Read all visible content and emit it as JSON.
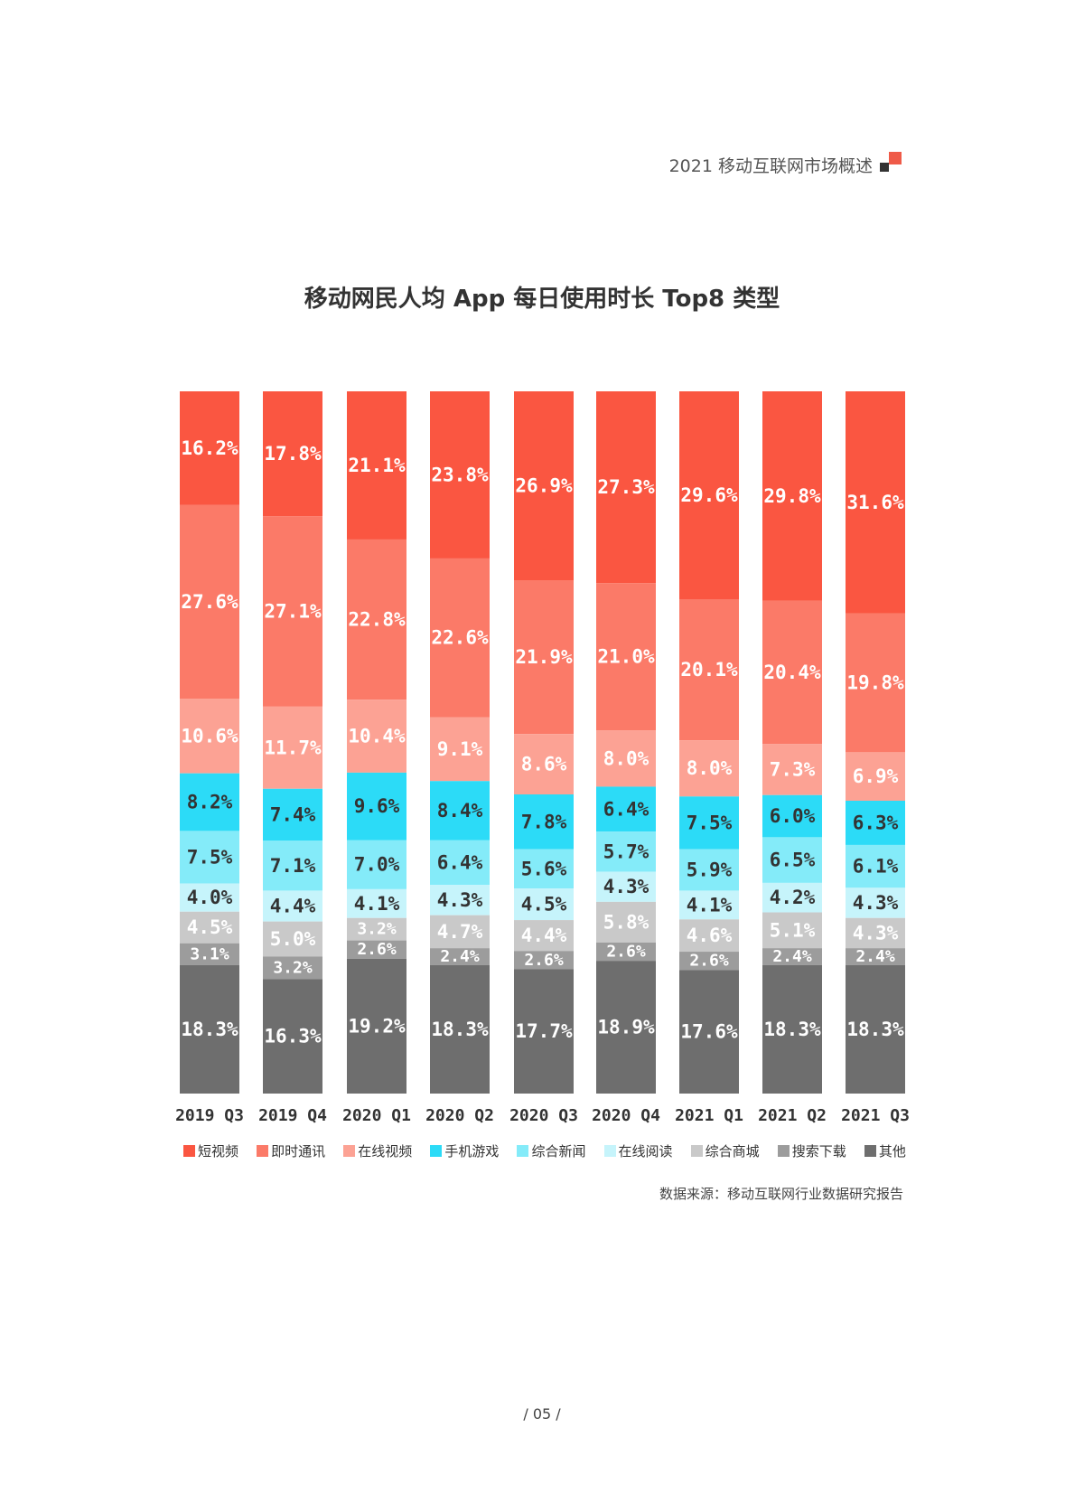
{
  "header": {
    "text": "2021 移动互联网市场概述"
  },
  "page_number": "/ 05 /",
  "source": "数据来源：移动互联网行业数据研究报告",
  "chart_data": {
    "type": "bar",
    "stacked": true,
    "title": "移动网民人均 App 每日使用时长 Top8 类型",
    "categories": [
      "2019 Q3",
      "2019 Q4",
      "2020 Q1",
      "2020 Q2",
      "2020 Q3",
      "2020 Q4",
      "2021 Q1",
      "2021 Q2",
      "2021 Q3"
    ],
    "legend_position": "bottom",
    "grid": false,
    "series": [
      {
        "name": "短视频",
        "color": "#fa5641",
        "label_color": "#ffffff",
        "values": [
          16.2,
          17.8,
          21.1,
          23.8,
          26.9,
          27.3,
          29.6,
          29.8,
          31.6
        ],
        "labels": [
          "16.2%",
          "17.8%",
          "21.1%",
          "23.8%",
          "26.9%",
          "27.3%",
          "29.6%",
          "29.8%",
          "31.6%"
        ]
      },
      {
        "name": "即时通讯",
        "color": "#fb7a68",
        "label_color": "#ffffff",
        "values": [
          27.6,
          27.1,
          22.8,
          22.6,
          21.9,
          21.0,
          20.1,
          20.4,
          19.8
        ],
        "labels": [
          "27.6%",
          "27.1%",
          "22.8%",
          "22.6%",
          "21.9%",
          "21.0%",
          "20.1%",
          "20.4%",
          "19.8%"
        ]
      },
      {
        "name": "在线视频",
        "color": "#fca294",
        "label_color": "#ffffff",
        "values": [
          10.6,
          11.7,
          10.4,
          9.1,
          8.6,
          8.0,
          8.0,
          7.3,
          6.9
        ],
        "labels": [
          "10.6%",
          "11.7%",
          "10.4%",
          "9.1%",
          "8.6%",
          "8.0%",
          "8.0%",
          "7.3%",
          "6.9%"
        ]
      },
      {
        "name": "手机游戏",
        "color": "#2cdbf7",
        "label_color": "#333333",
        "values": [
          8.2,
          7.4,
          9.6,
          8.4,
          7.8,
          6.4,
          7.5,
          6.0,
          6.3
        ],
        "labels": [
          "8.2%",
          "7.4%",
          "9.6%",
          "8.4%",
          "7.8%",
          "6.4%",
          "7.5%",
          "6.0%",
          "6.3%"
        ]
      },
      {
        "name": "综合新闻",
        "color": "#84ebf9",
        "label_color": "#333333",
        "values": [
          7.5,
          7.1,
          7.0,
          6.4,
          5.6,
          5.7,
          5.9,
          6.5,
          6.1
        ],
        "labels": [
          "7.5%",
          "7.1%",
          "7.0%",
          "6.4%",
          "5.6%",
          "5.7%",
          "5.9%",
          "6.5%",
          "6.1%"
        ]
      },
      {
        "name": "在线阅读",
        "color": "#c6f4fb",
        "label_color": "#333333",
        "values": [
          4.0,
          4.4,
          4.1,
          4.3,
          4.5,
          4.3,
          4.1,
          4.2,
          4.3
        ],
        "labels": [
          "4.0%",
          "4.4%",
          "4.1%",
          "4.3%",
          "4.5%",
          "4.3%",
          "4.1%",
          "4.2%",
          "4.3%"
        ]
      },
      {
        "name": "综合商城",
        "color": "#c9c9c9",
        "label_color": "#ffffff",
        "values": [
          4.5,
          5.0,
          3.2,
          4.7,
          4.4,
          5.8,
          4.6,
          5.1,
          4.3
        ],
        "labels": [
          "4.5%",
          "5.0%",
          "3.2%",
          "4.7%",
          "4.4%",
          "5.8%",
          "4.6%",
          "5.1%",
          "4.3%"
        ]
      },
      {
        "name": "搜索下载",
        "color": "#9c9c9c",
        "label_color": "#ffffff",
        "values": [
          3.1,
          3.2,
          2.6,
          2.4,
          2.6,
          2.6,
          2.6,
          2.4,
          2.4
        ],
        "labels": [
          "3.1%",
          "3.2%",
          "2.6%",
          "2.4%",
          "2.6%",
          "2.6%",
          "2.6%",
          "2.4%",
          "2.4%"
        ]
      },
      {
        "name": "其他",
        "color": "#6e6e6e",
        "label_color": "#ffffff",
        "values": [
          18.3,
          16.3,
          19.2,
          18.3,
          17.7,
          18.9,
          17.6,
          18.3,
          18.3
        ],
        "labels": [
          "18.3%",
          "16.3%",
          "19.2%",
          "18.3%",
          "17.7%",
          "18.9%",
          "17.6%",
          "18.3%",
          "18.3%"
        ]
      }
    ]
  }
}
